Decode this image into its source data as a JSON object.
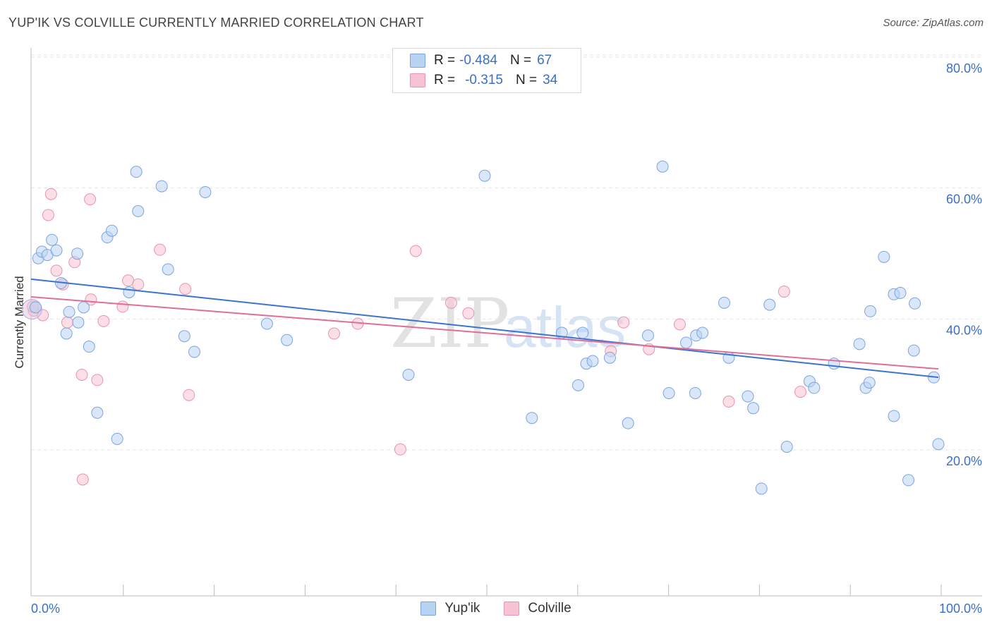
{
  "header": {
    "title": "YUP'IK VS COLVILLE CURRENTLY MARRIED CORRELATION CHART",
    "source": "Source: ZipAtlas.com"
  },
  "legend": {
    "series1": {
      "r_label": "R =",
      "r_value": "-0.484",
      "n_label": "N =",
      "n_value": "67"
    },
    "series2": {
      "r_label": "R =",
      "r_value": "-0.315",
      "n_label": "N =",
      "n_value": "34"
    }
  },
  "watermark": {
    "zip": "ZIP",
    "atlas": "atlas"
  },
  "colors": {
    "blue_fill": "#b9d3f3",
    "blue_stroke": "#7aa5e0",
    "blue_line": "#3a74d1",
    "pink_fill": "#f7c3d2",
    "pink_stroke": "#ea93ae",
    "pink_line": "#e06e97"
  },
  "chart_data": {
    "type": "scatter",
    "title": "YUP'IK VS COLVILLE CURRENTLY MARRIED CORRELATION CHART",
    "xlabel": "",
    "ylabel": "Currently Married",
    "xlim": [
      0,
      100
    ],
    "ylim": [
      0,
      85
    ],
    "x_tick_labels": [
      "0.0%",
      "100.0%"
    ],
    "y_ticks": [
      20,
      40,
      60,
      80
    ],
    "y_tick_labels": [
      "20.0%",
      "40.0%",
      "60.0%",
      "80.0%"
    ],
    "grid": true,
    "legend_position": "top-center",
    "series": [
      {
        "name": "Yup'ik",
        "color": "#3a74d1",
        "r": -0.484,
        "n": 67,
        "trend": {
          "x": [
            0,
            100
          ],
          "y": [
            47.8,
            32.8
          ]
        },
        "points": [
          {
            "x": 0.5,
            "y": 43.5
          },
          {
            "x": 0.8,
            "y": 51.0
          },
          {
            "x": 1.2,
            "y": 52.0
          },
          {
            "x": 1.8,
            "y": 51.5
          },
          {
            "x": 2.3,
            "y": 53.8
          },
          {
            "x": 2.8,
            "y": 52.2
          },
          {
            "x": 3.3,
            "y": 47.2
          },
          {
            "x": 3.9,
            "y": 39.5
          },
          {
            "x": 4.2,
            "y": 42.8
          },
          {
            "x": 5.2,
            "y": 41.2
          },
          {
            "x": 5.1,
            "y": 51.7
          },
          {
            "x": 5.8,
            "y": 43.5
          },
          {
            "x": 6.4,
            "y": 37.5
          },
          {
            "x": 7.3,
            "y": 27.4
          },
          {
            "x": 8.4,
            "y": 54.2
          },
          {
            "x": 8.9,
            "y": 55.2
          },
          {
            "x": 9.5,
            "y": 23.4
          },
          {
            "x": 10.8,
            "y": 45.8
          },
          {
            "x": 11.6,
            "y": 64.2
          },
          {
            "x": 11.8,
            "y": 58.2
          },
          {
            "x": 14.4,
            "y": 62.0
          },
          {
            "x": 15.1,
            "y": 49.3
          },
          {
            "x": 16.9,
            "y": 39.1
          },
          {
            "x": 18.0,
            "y": 36.7
          },
          {
            "x": 19.2,
            "y": 61.1
          },
          {
            "x": 26.0,
            "y": 41.0
          },
          {
            "x": 28.2,
            "y": 38.5
          },
          {
            "x": 41.6,
            "y": 33.2
          },
          {
            "x": 50.0,
            "y": 63.6
          },
          {
            "x": 55.2,
            "y": 26.6
          },
          {
            "x": 58.5,
            "y": 39.6
          },
          {
            "x": 60.3,
            "y": 31.6
          },
          {
            "x": 60.8,
            "y": 39.6
          },
          {
            "x": 61.2,
            "y": 34.9
          },
          {
            "x": 61.9,
            "y": 35.3
          },
          {
            "x": 63.8,
            "y": 35.8
          },
          {
            "x": 65.8,
            "y": 25.8
          },
          {
            "x": 68.0,
            "y": 39.2
          },
          {
            "x": 69.6,
            "y": 65.0
          },
          {
            "x": 70.3,
            "y": 30.4
          },
          {
            "x": 72.2,
            "y": 38.1
          },
          {
            "x": 73.2,
            "y": 30.4
          },
          {
            "x": 73.3,
            "y": 39.2
          },
          {
            "x": 74.0,
            "y": 39.6
          },
          {
            "x": 76.4,
            "y": 44.2
          },
          {
            "x": 76.9,
            "y": 35.8
          },
          {
            "x": 79.0,
            "y": 29.9
          },
          {
            "x": 79.6,
            "y": 28.1
          },
          {
            "x": 80.5,
            "y": 15.8
          },
          {
            "x": 81.4,
            "y": 43.9
          },
          {
            "x": 83.3,
            "y": 22.2
          },
          {
            "x": 85.8,
            "y": 32.2
          },
          {
            "x": 86.3,
            "y": 31.2
          },
          {
            "x": 88.5,
            "y": 34.9
          },
          {
            "x": 91.3,
            "y": 37.9
          },
          {
            "x": 92.0,
            "y": 31.2
          },
          {
            "x": 92.5,
            "y": 42.9
          },
          {
            "x": 92.4,
            "y": 32.0
          },
          {
            "x": 94.0,
            "y": 51.2
          },
          {
            "x": 95.1,
            "y": 45.5
          },
          {
            "x": 95.1,
            "y": 26.9
          },
          {
            "x": 95.8,
            "y": 45.7
          },
          {
            "x": 96.7,
            "y": 17.1
          },
          {
            "x": 97.3,
            "y": 36.9
          },
          {
            "x": 97.4,
            "y": 44.1
          },
          {
            "x": 99.5,
            "y": 32.8
          },
          {
            "x": 100.0,
            "y": 22.6
          }
        ]
      },
      {
        "name": "Colville",
        "color": "#e06e97",
        "r": -0.315,
        "n": 34,
        "trend": {
          "x": [
            0,
            100
          ],
          "y": [
            45.1,
            34.1
          ]
        },
        "points": [
          {
            "x": 0.3,
            "y": 43.0
          },
          {
            "x": 1.3,
            "y": 42.3
          },
          {
            "x": 1.9,
            "y": 57.6
          },
          {
            "x": 2.2,
            "y": 60.8
          },
          {
            "x": 2.8,
            "y": 49.1
          },
          {
            "x": 3.5,
            "y": 47.0
          },
          {
            "x": 4.0,
            "y": 41.2
          },
          {
            "x": 4.8,
            "y": 50.4
          },
          {
            "x": 5.6,
            "y": 33.2
          },
          {
            "x": 5.7,
            "y": 17.2
          },
          {
            "x": 6.5,
            "y": 60.0
          },
          {
            "x": 6.6,
            "y": 44.7
          },
          {
            "x": 7.3,
            "y": 32.4
          },
          {
            "x": 8.0,
            "y": 41.4
          },
          {
            "x": 10.1,
            "y": 43.6
          },
          {
            "x": 10.7,
            "y": 47.6
          },
          {
            "x": 11.8,
            "y": 47.0
          },
          {
            "x": 14.2,
            "y": 52.3
          },
          {
            "x": 17.0,
            "y": 46.3
          },
          {
            "x": 17.4,
            "y": 30.1
          },
          {
            "x": 33.4,
            "y": 39.5
          },
          {
            "x": 36.0,
            "y": 41.0
          },
          {
            "x": 40.7,
            "y": 21.8
          },
          {
            "x": 42.4,
            "y": 52.1
          },
          {
            "x": 46.3,
            "y": 44.2
          },
          {
            "x": 48.2,
            "y": 42.6
          },
          {
            "x": 63.9,
            "y": 36.8
          },
          {
            "x": 65.3,
            "y": 41.2
          },
          {
            "x": 68.1,
            "y": 37.1
          },
          {
            "x": 71.5,
            "y": 40.9
          },
          {
            "x": 76.9,
            "y": 29.1
          },
          {
            "x": 83.0,
            "y": 45.9
          },
          {
            "x": 84.8,
            "y": 30.6
          },
          {
            "x": 0.2,
            "y": 43.6
          }
        ]
      }
    ]
  }
}
